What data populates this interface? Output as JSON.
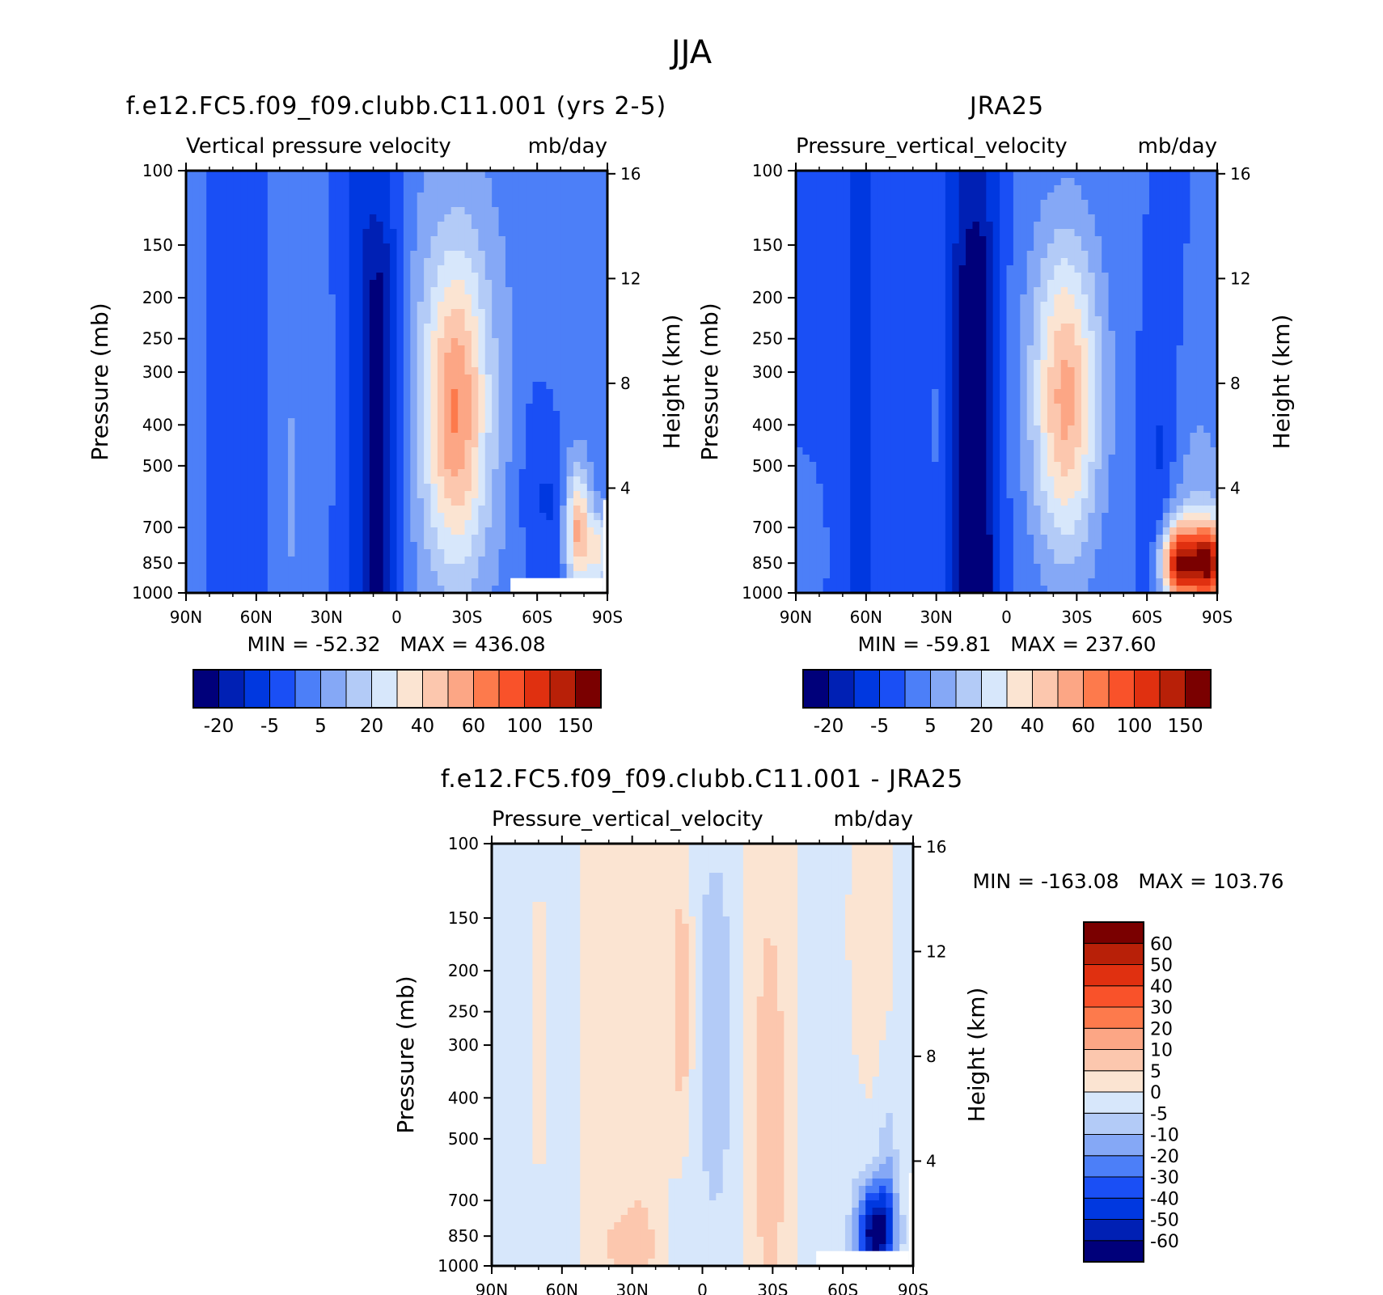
{
  "figure_title": "JJA",
  "colors": {
    "main_scale": [
      "#00007a",
      "#0020b4",
      "#0038e0",
      "#1a4ff5",
      "#4c7ff8",
      "#85a8f6",
      "#b3cbf7",
      "#d7e7fb",
      "#fbe4d2",
      "#fcc7ae",
      "#fca685",
      "#fd7a4c",
      "#f9522a",
      "#e03010",
      "#b82008",
      "#7a0000"
    ],
    "diff_scale": [
      "#00007a",
      "#0020b4",
      "#0038e0",
      "#1a4ff5",
      "#4c7ff8",
      "#85a8f6",
      "#b3cbf7",
      "#d7e7fb",
      "#fbe4d2",
      "#fcc7ae",
      "#fca685",
      "#fd7a4c",
      "#f9522a",
      "#e03010",
      "#b82008",
      "#7a0000"
    ]
  },
  "chart_data": [
    {
      "type": "heatmap",
      "title": "f.e12.FC5.f09_f09.clubb.C11.001 (yrs 2-5)",
      "subtitle_left": "Vertical pressure velocity",
      "subtitle_right": "mb/day",
      "ylabel": "Pressure (mb)",
      "ylabel_right": "Height (km)",
      "x_ticks": [
        "90N",
        "60N",
        "30N",
        "0",
        "30S",
        "60S",
        "90S"
      ],
      "y_ticks": [
        "100",
        "150",
        "200",
        "250",
        "300",
        "400",
        "500",
        "700",
        "850",
        "1000"
      ],
      "y_ticks_right": [
        "16",
        "12",
        "8",
        "4"
      ],
      "stats_text": "MIN = -52.32   MAX = 436.08",
      "min": -52.32,
      "max": 436.08,
      "colorbar_labels": [
        "-20",
        "-5",
        "5",
        "20",
        "40",
        "60",
        "100",
        "150"
      ],
      "field": "model"
    },
    {
      "type": "heatmap",
      "title": "JRA25",
      "subtitle_left": "Pressure_vertical_velocity",
      "subtitle_right": "mb/day",
      "ylabel": "Pressure (mb)",
      "ylabel_right": "Height (km)",
      "x_ticks": [
        "90N",
        "60N",
        "30N",
        "0",
        "30S",
        "60S",
        "90S"
      ],
      "y_ticks": [
        "100",
        "150",
        "200",
        "250",
        "300",
        "400",
        "500",
        "700",
        "850",
        "1000"
      ],
      "y_ticks_right": [
        "16",
        "12",
        "8",
        "4"
      ],
      "stats_text": "MIN = -59.81   MAX = 237.60",
      "min": -59.81,
      "max": 237.6,
      "colorbar_labels": [
        "-20",
        "-5",
        "5",
        "20",
        "40",
        "60",
        "100",
        "150"
      ],
      "field": "obs"
    },
    {
      "type": "heatmap",
      "title": "f.e12.FC5.f09_f09.clubb.C11.001 - JRA25",
      "subtitle_left": "Pressure_vertical_velocity",
      "subtitle_right": "mb/day",
      "ylabel": "Pressure (mb)",
      "ylabel_right": "Height (km)",
      "x_ticks": [
        "90N",
        "60N",
        "30N",
        "0",
        "30S",
        "60S",
        "90S"
      ],
      "y_ticks": [
        "100",
        "150",
        "200",
        "250",
        "300",
        "400",
        "500",
        "700",
        "850",
        "1000"
      ],
      "y_ticks_right": [
        "16",
        "12",
        "8",
        "4"
      ],
      "stats_text": "MIN = -163.08   MAX = 103.76",
      "min": -163.08,
      "max": 103.76,
      "colorbar_labels": [
        "60",
        "50",
        "40",
        "30",
        "20",
        "10",
        "5",
        "0",
        "-5",
        "-10",
        "-20",
        "-30",
        "-40",
        "-50",
        "-60"
      ],
      "field": "diff"
    }
  ]
}
